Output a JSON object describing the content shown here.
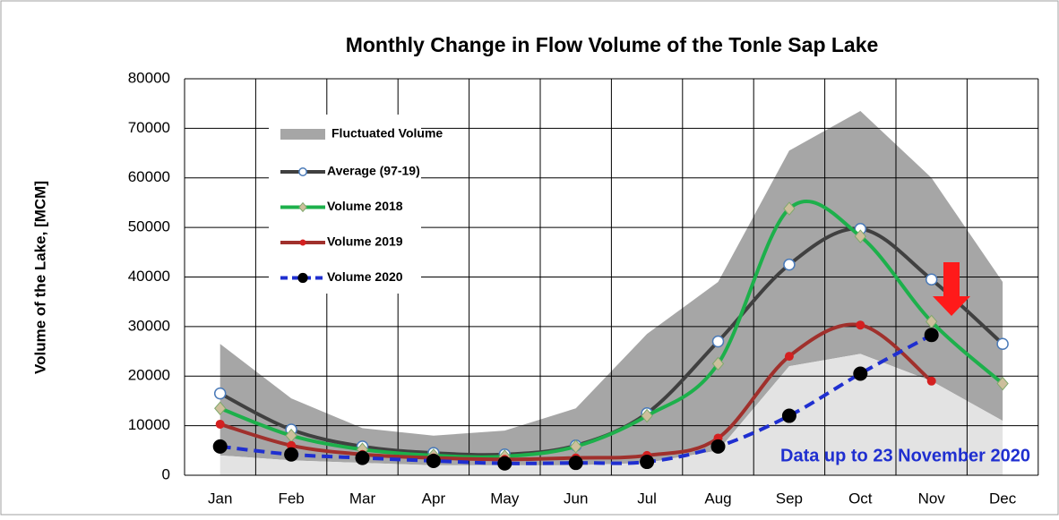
{
  "chart_data": {
    "type": "line",
    "title": "Monthly Change in Flow Volume of the Tonle Sap Lake",
    "y_label": "Volume of the Lake, [MCM]",
    "annotation": "Data up to 23 November 2020",
    "categories": [
      "Jan",
      "Feb",
      "Mar",
      "Apr",
      "May",
      "Jun",
      "Jul",
      "Aug",
      "Sep",
      "Oct",
      "Nov",
      "Dec"
    ],
    "ylim": [
      0,
      80000
    ],
    "yticks": [
      0,
      10000,
      20000,
      30000,
      40000,
      50000,
      60000,
      70000,
      80000
    ],
    "grid": true,
    "legend": "upper left",
    "band": {
      "name": "Fluctuated Volume",
      "color": "#a6a6a6",
      "low_color": "#e3e3e3",
      "high": [
        26500,
        15500,
        9500,
        8000,
        9000,
        13500,
        28500,
        39000,
        65500,
        73500,
        60000,
        39000
      ],
      "low": [
        4000,
        3000,
        2500,
        2000,
        2000,
        2000,
        2500,
        5000,
        22000,
        24500,
        19000,
        11000
      ]
    },
    "series": [
      {
        "name": "Average (97-19)",
        "color": "#404040",
        "marker": "circle",
        "values": [
          16500,
          9200,
          5800,
          4500,
          4200,
          6000,
          12500,
          27000,
          42500,
          49700,
          39500,
          26500
        ]
      },
      {
        "name": "Volume 2018",
        "color": "#1db04b",
        "marker": "diamond",
        "values": [
          13500,
          8000,
          5200,
          4000,
          3800,
          5800,
          12000,
          22500,
          53800,
          48200,
          31000,
          18500
        ]
      },
      {
        "name": "Volume 2019",
        "color": "#a0302c",
        "marker": "dot",
        "values": [
          10300,
          6000,
          4200,
          3500,
          3200,
          3500,
          4000,
          7500,
          24000,
          30300,
          19000,
          null
        ]
      },
      {
        "name": "Volume 2020",
        "color": "#1f2fd0",
        "marker": "black",
        "dashed": true,
        "values": [
          5800,
          4200,
          3500,
          2900,
          2400,
          2500,
          2700,
          5800,
          12000,
          20500,
          28300,
          null
        ]
      }
    ]
  }
}
